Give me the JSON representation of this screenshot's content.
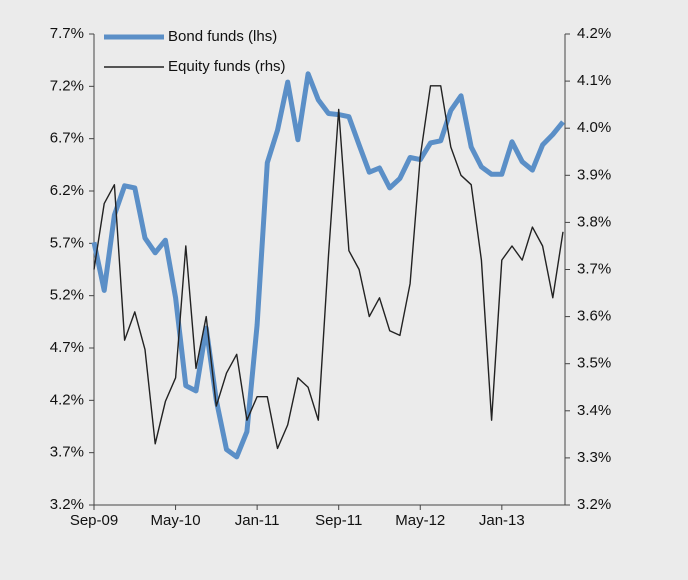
{
  "chart_data": {
    "type": "line",
    "categories": [
      "Sep-09",
      null,
      null,
      null,
      null,
      null,
      null,
      null,
      "May-10",
      null,
      null,
      null,
      null,
      null,
      null,
      null,
      "Jan-11",
      null,
      null,
      null,
      null,
      null,
      null,
      null,
      "Sep-11",
      null,
      null,
      null,
      null,
      null,
      null,
      null,
      "May-12",
      null,
      null,
      null,
      null,
      null,
      null,
      null,
      "Jan-13",
      null,
      null,
      null,
      null,
      null,
      null
    ],
    "series": [
      {
        "name": "Bond funds (lhs)",
        "color": "#5b8fc7",
        "axis": "y",
        "values": [
          5.71,
          5.25,
          5.97,
          6.25,
          6.23,
          5.75,
          5.61,
          5.73,
          5.18,
          4.34,
          4.29,
          4.89,
          4.2,
          3.73,
          3.66,
          3.9,
          4.92,
          6.47,
          6.78,
          7.24,
          6.69,
          7.32,
          7.07,
          6.94,
          6.93,
          6.91,
          6.64,
          6.38,
          6.42,
          6.23,
          6.32,
          6.52,
          6.5,
          6.66,
          6.68,
          6.97,
          7.11,
          6.62,
          6.43,
          6.36,
          6.36,
          6.67,
          6.48,
          6.4,
          6.64,
          6.74,
          6.86
        ]
      },
      {
        "name": "Equity funds (rhs)",
        "color": "#222222",
        "axis": "y2",
        "values": [
          3.7,
          3.84,
          3.88,
          3.55,
          3.61,
          3.53,
          3.33,
          3.42,
          3.47,
          3.75,
          3.49,
          3.6,
          3.41,
          3.48,
          3.52,
          3.38,
          3.43,
          3.43,
          3.32,
          3.37,
          3.47,
          3.45,
          3.38,
          3.73,
          4.04,
          3.74,
          3.7,
          3.6,
          3.64,
          3.57,
          3.56,
          3.67,
          3.94,
          4.09,
          4.09,
          3.96,
          3.9,
          3.88,
          3.72,
          3.38,
          3.72,
          3.75,
          3.72,
          3.79,
          3.75,
          3.64,
          3.78
        ]
      }
    ],
    "ylim": [
      3.2,
      7.7
    ],
    "yticks": [
      {
        "value": 3.2,
        "label": "3.2%"
      },
      {
        "value": 3.7,
        "label": "3.7%"
      },
      {
        "value": 4.2,
        "label": "4.2%"
      },
      {
        "value": 4.7,
        "label": "4.7%"
      },
      {
        "value": 5.2,
        "label": "5.2%"
      },
      {
        "value": 5.7,
        "label": "5.7%"
      },
      {
        "value": 6.2,
        "label": "6.2%"
      },
      {
        "value": 6.7,
        "label": "6.7%"
      },
      {
        "value": 7.2,
        "label": "7.2%"
      },
      {
        "value": 7.7,
        "label": "7.7%"
      }
    ],
    "y2lim": [
      3.2,
      4.2
    ],
    "y2ticks": [
      {
        "value": 3.2,
        "label": "3.2%"
      },
      {
        "value": 3.3,
        "label": "3.3%"
      },
      {
        "value": 3.4,
        "label": "3.4%"
      },
      {
        "value": 3.5,
        "label": "3.5%"
      },
      {
        "value": 3.6,
        "label": "3.6%"
      },
      {
        "value": 3.7,
        "label": "3.7%"
      },
      {
        "value": 3.8,
        "label": "3.8%"
      },
      {
        "value": 3.9,
        "label": "3.9%"
      },
      {
        "value": 4.0,
        "label": "4.0%"
      },
      {
        "value": 4.1,
        "label": "4.1%"
      },
      {
        "value": 4.2,
        "label": "4.2%"
      }
    ],
    "grid": false,
    "legend": "top-left"
  }
}
